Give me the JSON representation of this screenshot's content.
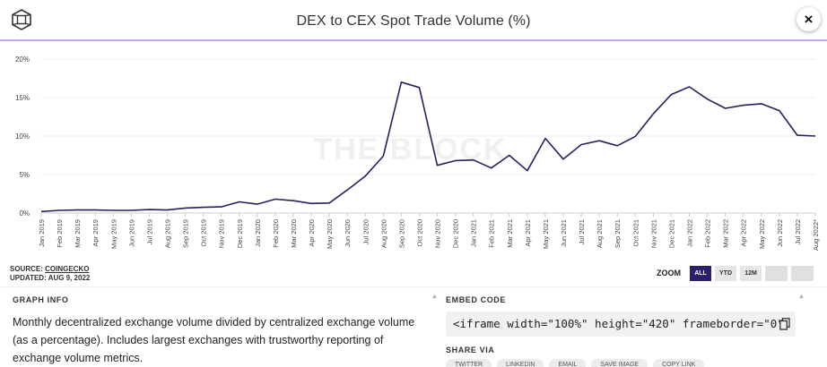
{
  "header": {
    "title": "DEX to CEX Spot Trade Volume (%)",
    "close_label": "×",
    "logo_icon": "the-block-logo-icon"
  },
  "chart_data": {
    "type": "line",
    "title": "DEX to CEX Spot Trade Volume (%)",
    "watermark": "THE BLOCK",
    "line_color": "#2c1f5e",
    "y_ticks": [
      "0%",
      "5%",
      "10%",
      "15%",
      "20%"
    ],
    "ylim": [
      0,
      20
    ],
    "categories": [
      "Jan 2019",
      "Feb 2019",
      "Mar 2019",
      "Apr 2019",
      "May 2019",
      "Jun 2019",
      "Jul 2019",
      "Aug 2019",
      "Sep 2019",
      "Oct 2019",
      "Nov 2019",
      "Dec 2019",
      "Jan 2020",
      "Feb 2020",
      "Mar 2020",
      "Apr 2020",
      "May 2020",
      "Jun 2020",
      "Jul 2020",
      "Aug 2020",
      "Sep 2020",
      "Oct 2020",
      "Nov 2020",
      "Dec 2020",
      "Jan 2021",
      "Feb 2021",
      "Mar 2021",
      "Apr 2021",
      "May 2021",
      "Jun 2021",
      "Jul 2021",
      "Aug 2021",
      "Sep 2021",
      "Oct 2021",
      "Nov 2021",
      "Dec 2021",
      "Jan 2022",
      "Feb 2022",
      "Mar 2022",
      "Apr 2022",
      "May 2022",
      "Jun 2022",
      "Jul 2022",
      "Aug 2022*"
    ],
    "values": [
      0.2,
      0.35,
      0.4,
      0.4,
      0.35,
      0.35,
      0.45,
      0.4,
      0.65,
      0.75,
      0.8,
      1.45,
      1.15,
      1.8,
      1.6,
      1.25,
      1.3,
      3.0,
      4.8,
      7.4,
      17.0,
      16.3,
      6.2,
      6.8,
      6.9,
      5.85,
      7.5,
      5.5,
      9.7,
      7.0,
      8.9,
      9.4,
      8.75,
      9.95,
      12.9,
      15.4,
      16.4,
      14.8,
      13.6,
      14.0,
      14.2,
      13.3,
      10.1,
      10.0
    ],
    "grid": true,
    "legend": "none"
  },
  "source": {
    "label": "SOURCE: ",
    "name": "COINGECKO",
    "updated": "UPDATED: AUG 9, 2022"
  },
  "zoom": {
    "label": "ZOOM",
    "buttons": [
      "ALL",
      "YTD",
      "12M",
      "",
      ""
    ]
  },
  "graph_info": {
    "heading": "GRAPH INFO",
    "text": "Monthly decentralized exchange volume divided by centralized exchange volume (as a percentage). Includes largest exchanges with trustworthy reporting of exchange volume metrics."
  },
  "embed": {
    "heading": "EMBED CODE",
    "code": "<iframe width=\"100%\" height=\"420\" frameborder=\"0\"",
    "share_heading": "SHARE VIA",
    "share_buttons": [
      "TWITTER",
      "LINKEDIN",
      "EMAIL",
      "SAVE IMAGE",
      "COPY LINK"
    ]
  }
}
